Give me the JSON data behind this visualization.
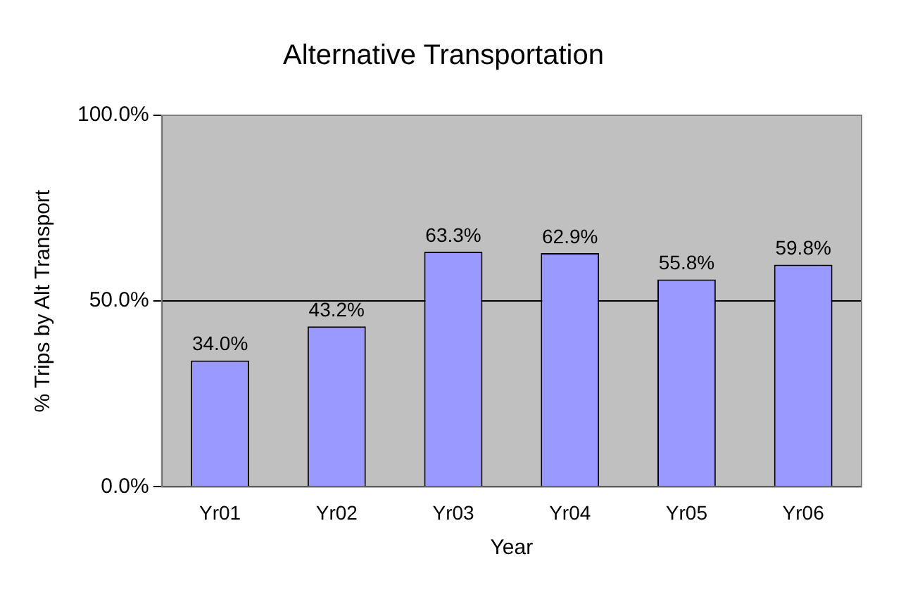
{
  "chart_data": {
    "type": "bar",
    "title": "Alternative Transportation",
    "xlabel": "Year",
    "ylabel": "% Trips by Alt Transport",
    "categories": [
      "Yr01",
      "Yr02",
      "Yr03",
      "Yr04",
      "Yr05",
      "Yr06"
    ],
    "values": [
      34.0,
      43.2,
      63.3,
      62.9,
      55.8,
      59.8
    ],
    "value_labels": [
      "34.0%",
      "43.2%",
      "63.3%",
      "62.9%",
      "55.8%",
      "59.8%"
    ],
    "color": "#9999ff",
    "ylim": [
      0,
      100
    ],
    "yticks": [
      {
        "value": 0,
        "label": "0.0%"
      },
      {
        "value": 50,
        "label": "50.0%"
      },
      {
        "value": 100,
        "label": "100.0%"
      }
    ],
    "grid": "y",
    "legend": false
  }
}
